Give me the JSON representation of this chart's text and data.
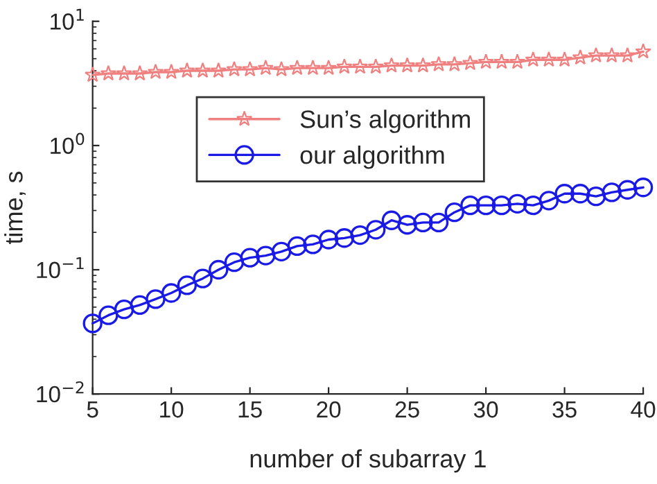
{
  "chart_data": {
    "type": "line",
    "xlabel": "number of subarray 1",
    "ylabel": "time, s",
    "log": "y",
    "grid": false,
    "legend": "top",
    "xlim": [
      5,
      40
    ],
    "xticks": [
      5,
      10,
      15,
      20,
      25,
      30,
      35,
      40
    ],
    "ylim": [
      0.01,
      10
    ],
    "yticks": [
      {
        "value": 0.01,
        "label": "10$^{−2}$"
      },
      {
        "value": 0.1,
        "label": "10$^{−1}$"
      },
      {
        "value": 1,
        "label": "10$^{0}$"
      },
      {
        "value": 10,
        "label": "10$^{1}$"
      }
    ],
    "series": [
      {
        "name": "Sun’s algorithm",
        "color": "#f08080",
        "marker": "star",
        "x": [
          5,
          6,
          7,
          8,
          9,
          10,
          11,
          12,
          13,
          14,
          15,
          16,
          17,
          18,
          19,
          20,
          21,
          22,
          23,
          24,
          25,
          26,
          27,
          28,
          29,
          30,
          31,
          32,
          33,
          34,
          35,
          36,
          37,
          38,
          39,
          40
        ],
        "values": [
          3.7,
          3.8,
          3.8,
          3.8,
          3.9,
          3.9,
          4.0,
          4.0,
          4.0,
          4.1,
          4.1,
          4.2,
          4.1,
          4.2,
          4.2,
          4.2,
          4.3,
          4.3,
          4.3,
          4.4,
          4.4,
          4.4,
          4.5,
          4.5,
          4.6,
          4.7,
          4.7,
          4.7,
          4.9,
          4.9,
          4.9,
          5.1,
          5.3,
          5.3,
          5.3,
          5.7
        ]
      },
      {
        "name": "our algorithm",
        "color": "#1a1ae6",
        "marker": "circle",
        "x": [
          5,
          6,
          7,
          8,
          9,
          10,
          11,
          12,
          13,
          14,
          15,
          16,
          17,
          18,
          19,
          20,
          21,
          22,
          23,
          24,
          25,
          26,
          27,
          28,
          29,
          30,
          31,
          32,
          33,
          34,
          35,
          36,
          37,
          38,
          39,
          40
        ],
        "values": [
          0.037,
          0.043,
          0.048,
          0.052,
          0.058,
          0.065,
          0.075,
          0.085,
          0.1,
          0.115,
          0.125,
          0.13,
          0.14,
          0.155,
          0.16,
          0.175,
          0.18,
          0.19,
          0.21,
          0.25,
          0.23,
          0.24,
          0.24,
          0.29,
          0.33,
          0.33,
          0.33,
          0.34,
          0.33,
          0.36,
          0.41,
          0.41,
          0.39,
          0.42,
          0.44,
          0.46
        ]
      }
    ]
  }
}
